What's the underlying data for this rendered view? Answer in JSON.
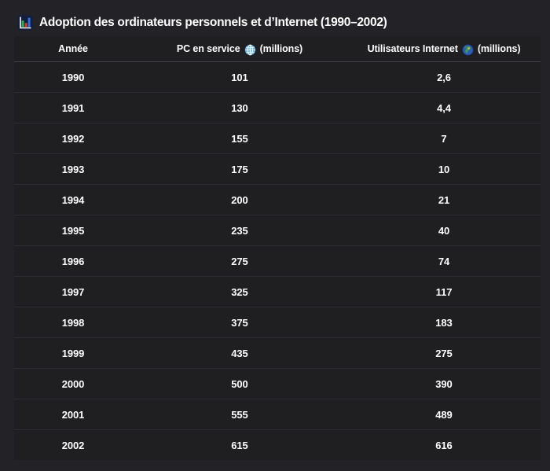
{
  "title": {
    "text": "Adoption des ordinateurs personnels et d’Internet (1990–2002)"
  },
  "table": {
    "headers": {
      "year": "Année",
      "pc_label": "PC en service",
      "pc_suffix": "(millions)",
      "internet_label": "Utilisateurs Internet",
      "internet_suffix": "(millions)"
    },
    "rows": [
      [
        "1990",
        "101",
        "2,6"
      ],
      [
        "1991",
        "130",
        "4,4"
      ],
      [
        "1992",
        "155",
        "7"
      ],
      [
        "1993",
        "175",
        "10"
      ],
      [
        "1994",
        "200",
        "21"
      ],
      [
        "1995",
        "235",
        "40"
      ],
      [
        "1996",
        "275",
        "74"
      ],
      [
        "1997",
        "325",
        "117"
      ],
      [
        "1998",
        "375",
        "183"
      ],
      [
        "1999",
        "435",
        "275"
      ],
      [
        "2000",
        "500",
        "390"
      ],
      [
        "2001",
        "555",
        "489"
      ],
      [
        "2002",
        "615",
        "616"
      ]
    ]
  },
  "icons": {
    "title_icon": "bar-chart-emoji",
    "pc_icon": "globe-with-meridians-emoji",
    "internet_icon": "earth-globe-europe-africa-emoji"
  },
  "colors": {
    "page_background": "#232327",
    "table_background": "#1f1f22",
    "row_divider": "#2c2c31",
    "header_divider": "#414147",
    "text": "#ffffff",
    "icon_bar_green": "#2fae4e",
    "icon_bar_red": "#d23b2f",
    "icon_bar_blue": "#2f6fe0",
    "icon_globe_light_blue": "#6cb9e6",
    "icon_ocean_blue": "#2d5cb8",
    "icon_land_green": "#3f9e43"
  },
  "chart_data": {
    "type": "table",
    "title": "Adoption des ordinateurs personnels et d’Internet (1990–2002)",
    "columns": [
      "Année",
      "PC en service (millions)",
      "Utilisateurs Internet (millions)"
    ],
    "categories": [
      "1990",
      "1991",
      "1992",
      "1993",
      "1994",
      "1995",
      "1996",
      "1997",
      "1998",
      "1999",
      "2000",
      "2001",
      "2002"
    ],
    "series": [
      {
        "name": "PC en service (millions)",
        "values": [
          101,
          130,
          155,
          175,
          200,
          235,
          275,
          325,
          375,
          435,
          500,
          555,
          615
        ]
      },
      {
        "name": "Utilisateurs Internet (millions)",
        "values": [
          2.6,
          4.4,
          7,
          10,
          21,
          40,
          74,
          117,
          183,
          275,
          390,
          489,
          616
        ]
      }
    ]
  }
}
